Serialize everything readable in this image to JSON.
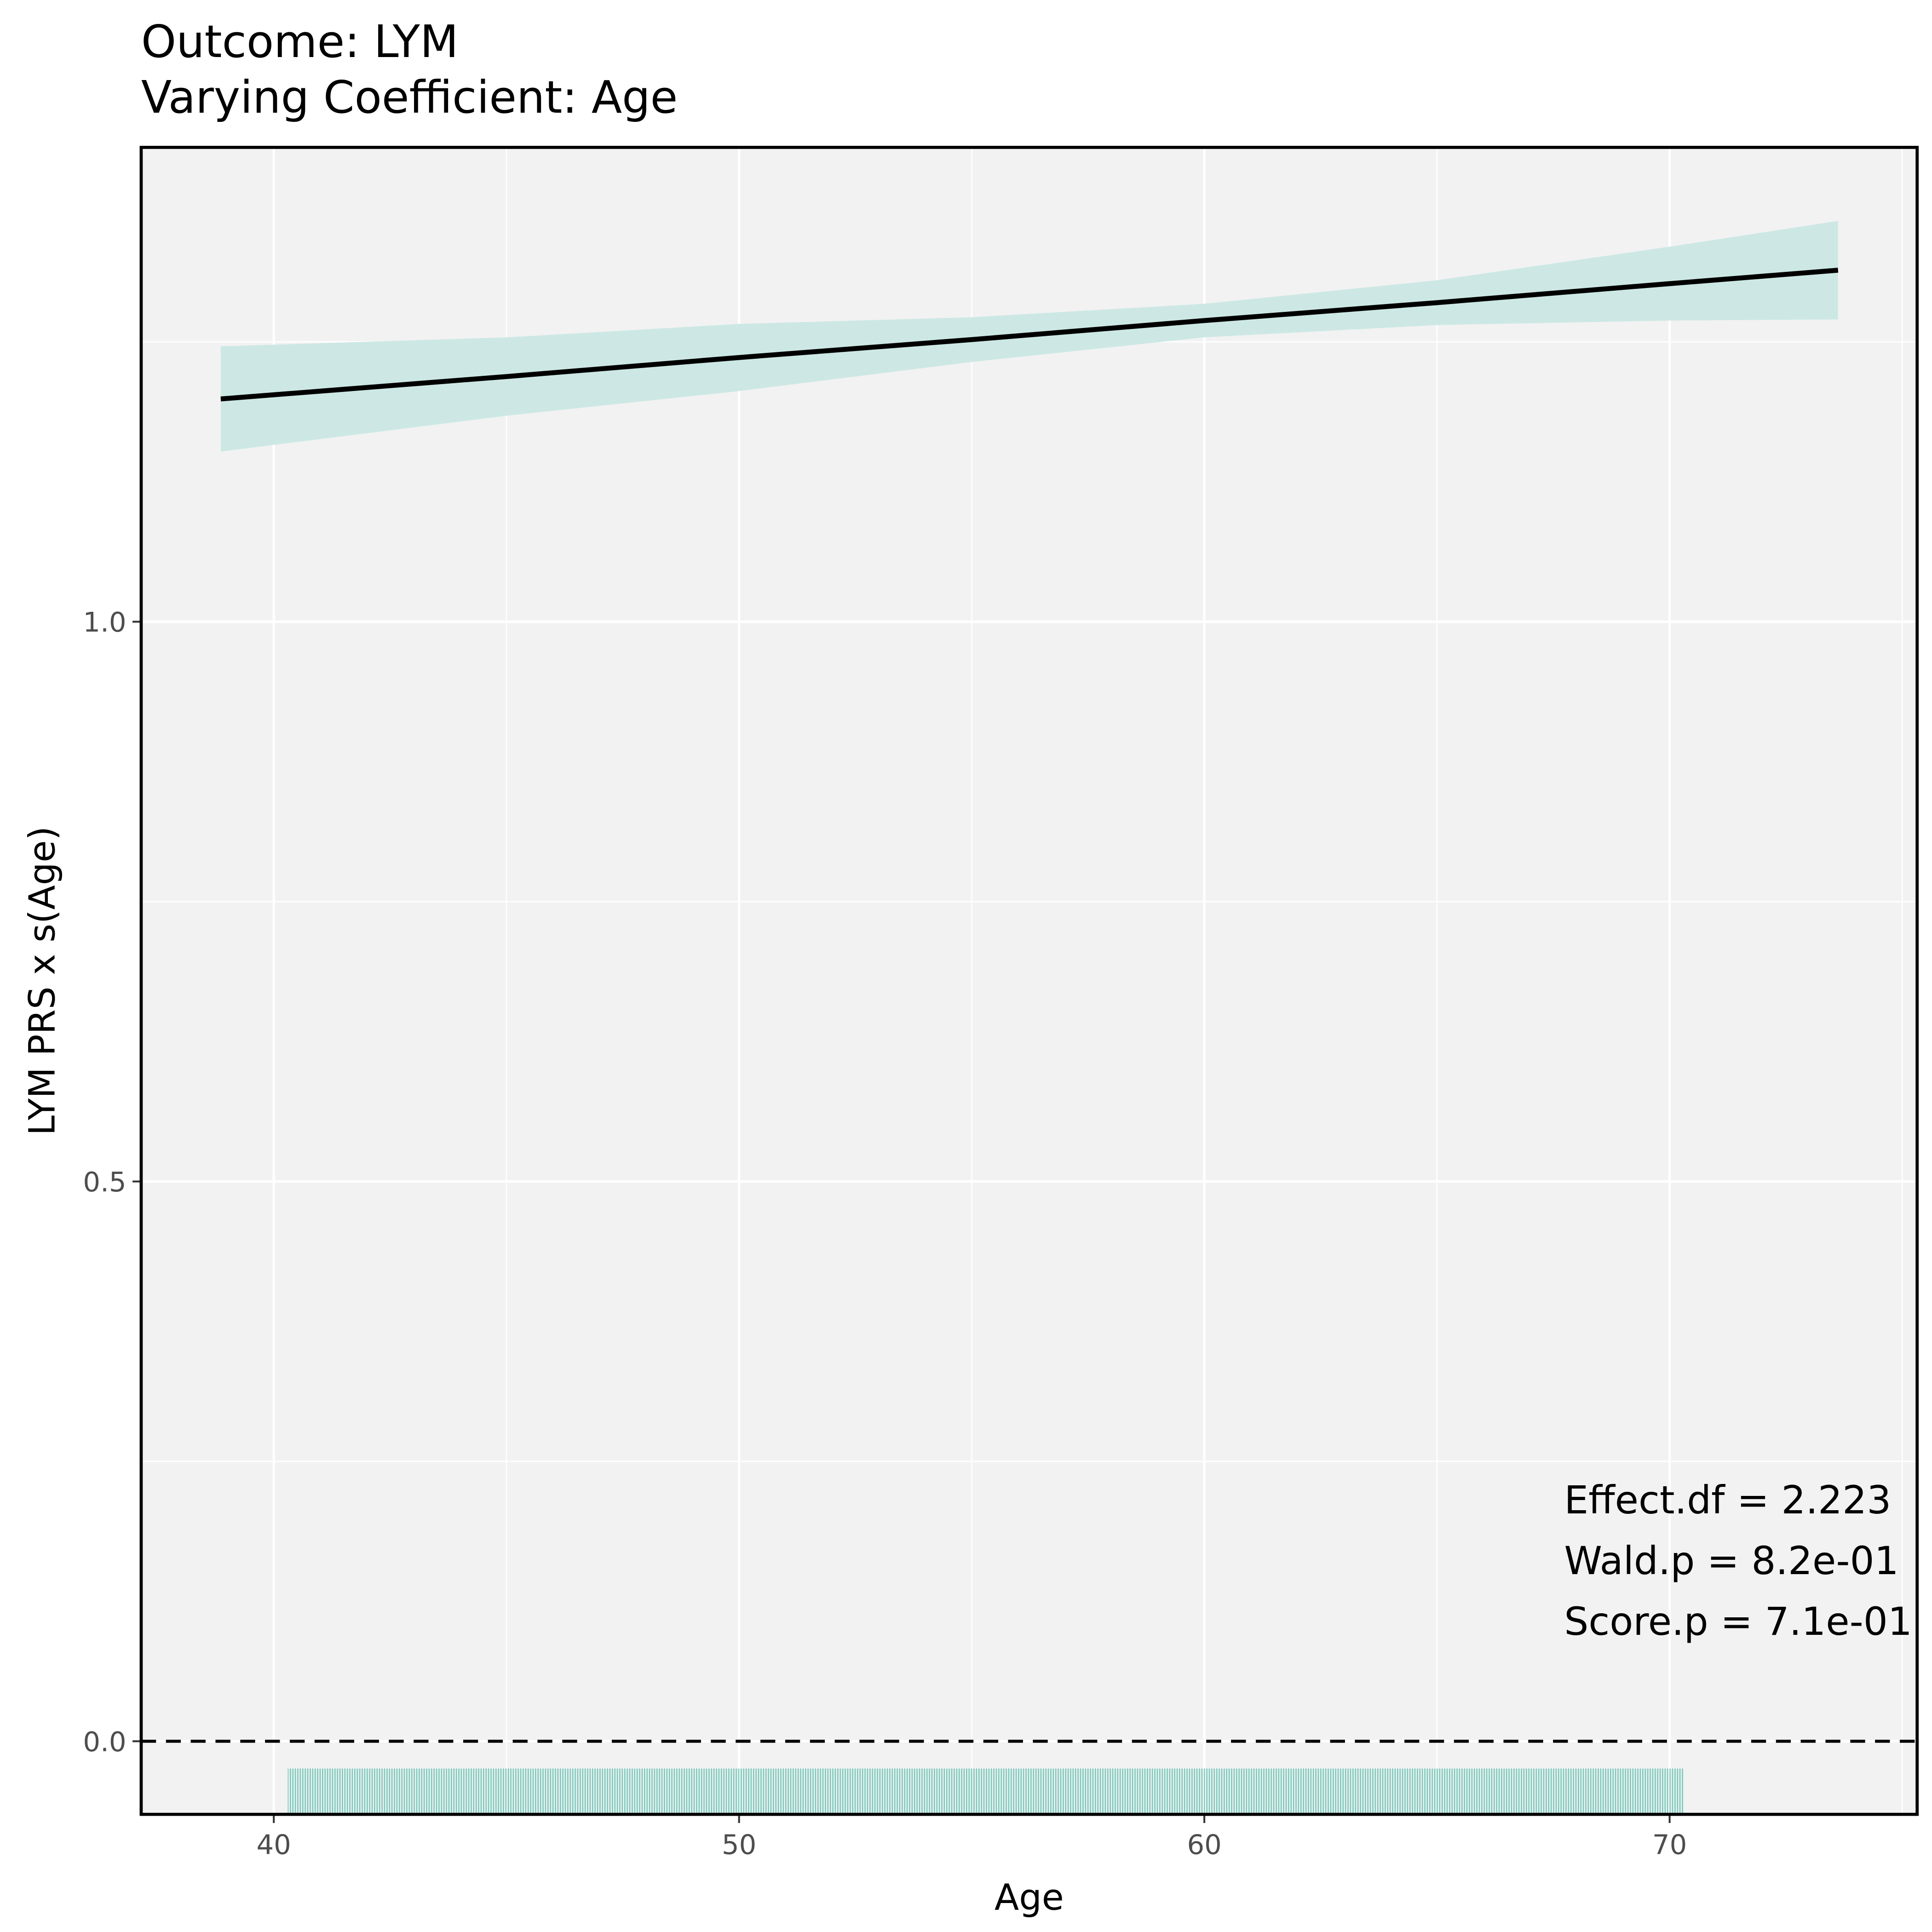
{
  "chart_data": {
    "type": "line",
    "title": "Outcome: LYM",
    "subtitle": "Varying Coefficient: Age",
    "x_label": "Age",
    "y_label": "LYM PRS x s(Age)",
    "x": [
      38.86,
      45,
      50,
      55,
      60,
      65,
      70,
      73.62
    ],
    "series": [
      {
        "name": "estimate",
        "color": "#000000",
        "values": [
          1.199,
          1.219,
          1.236,
          1.252,
          1.269,
          1.285,
          1.302,
          1.314
        ],
        "upper": [
          1.246,
          1.254,
          1.266,
          1.272,
          1.284,
          1.305,
          1.335,
          1.358
        ],
        "lower": [
          1.152,
          1.184,
          1.206,
          1.232,
          1.254,
          1.265,
          1.269,
          1.27
        ],
        "band_color": "#cde8e4"
      }
    ],
    "rug": {
      "xmin": 40.3,
      "xmax": 70.3,
      "color": "#5cbfae"
    },
    "hline": 0,
    "xlim": [
      37.15,
      75.32
    ],
    "ylim": [
      -0.0653,
      1.4237
    ],
    "xticks": [
      40,
      50,
      60,
      70
    ],
    "yticks": [
      {
        "value": 0,
        "label": "0.0"
      },
      {
        "value": 0.5,
        "label": "0.5"
      },
      {
        "value": 1,
        "label": "1.0"
      }
    ],
    "xminorticks": [
      45,
      55,
      65,
      75
    ],
    "yminorticks": [
      0.25,
      0.75,
      1.25
    ],
    "grid": true,
    "annotations": [
      "Effect.df = 2.223",
      "Wald.p = 8.2e-01",
      "Score.p = 7.1e-01"
    ]
  }
}
